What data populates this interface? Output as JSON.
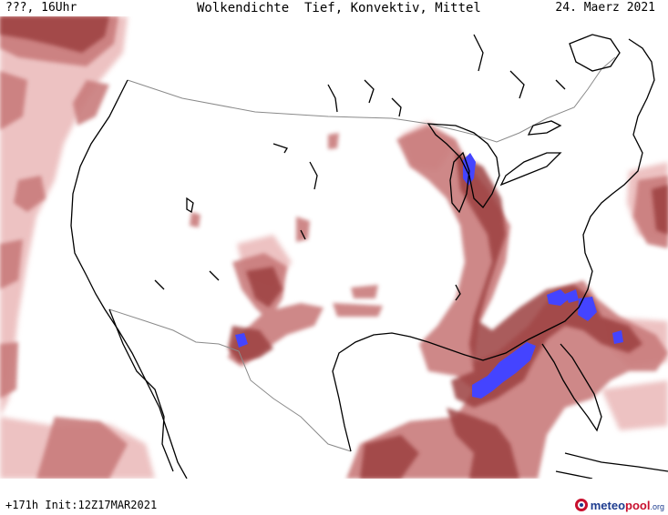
{
  "header": {
    "left": "???, 16Uhr",
    "center": "Wolkendichte  Tief, Konvektiv, Mittel",
    "right": "24. Maerz 2021"
  },
  "footer": {
    "run_info": "+171h Init:12Z17MAR2021",
    "logo": {
      "part1": "meteo",
      "part2": "pool",
      "tld": ".org"
    }
  },
  "colors": {
    "cloud_light": "#eab8b8",
    "cloud_mid": "#c97b7b",
    "cloud_dense": "#9c4040",
    "cloud_max": "#4444ff",
    "coast": "#000000",
    "border": "#8a8a8a"
  }
}
